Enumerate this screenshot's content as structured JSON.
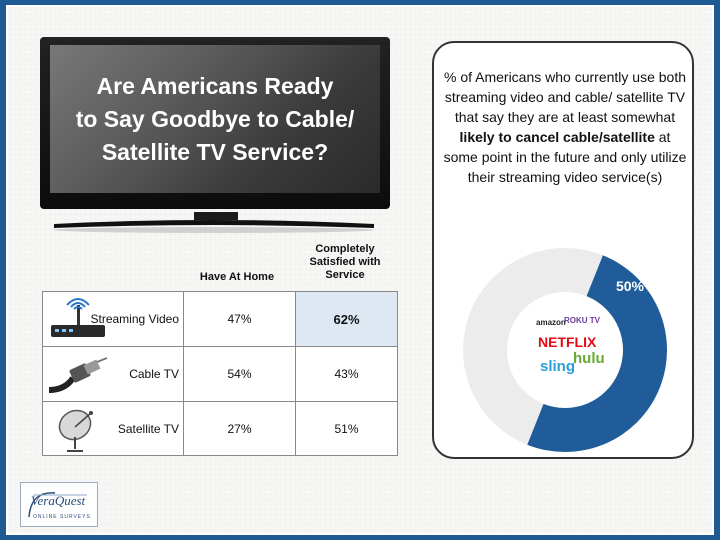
{
  "tv": {
    "title_line1": "Are Americans Ready",
    "title_line2": "to Say Goodbye to Cable/",
    "title_line3": "Satellite TV Service?"
  },
  "table": {
    "columns": [
      "Have At Home",
      [
        "Completely",
        "Satisfied with",
        "Service"
      ]
    ],
    "rows": [
      {
        "icon": "router-icon",
        "label": "Streaming Video",
        "have_at_home": "47%",
        "satisfied": "62%"
      },
      {
        "icon": "coax-cable-icon",
        "label": "Cable TV",
        "have_at_home": "54%",
        "satisfied": "43%"
      },
      {
        "icon": "satellite-dish-icon",
        "label": "Satellite TV",
        "have_at_home": "27%",
        "satisfied": "51%"
      }
    ]
  },
  "card": {
    "text_before": "% of Americans who currently use both streaming video and cable/ satellite TV that say they are at least somewhat ",
    "text_bold": "likely to cancel cable/satellite",
    "text_after": " at some point in the future and only utilize their streaming video service(s)"
  },
  "chart_data": {
    "type": "pie",
    "subtype": "donut",
    "slices": [
      {
        "label": "likely to cancel",
        "value": 50,
        "data_label": "50%",
        "color": "#1f5c99"
      },
      {
        "label": "",
        "value": 50,
        "color": "#ececec"
      }
    ],
    "brands": [
      "amazon",
      "ROKU TV",
      "NETFLIX",
      "sling",
      "hulu"
    ]
  },
  "logo": {
    "name": "VeraQuest",
    "tagline": "ONLINE SURVEYS"
  },
  "colors": {
    "border": "#1e5a94",
    "accent": "#1f5c99",
    "highlight_cell": "#dde8f3",
    "netflix": "#e50914",
    "hulu": "#66aa33",
    "sling": "#2b9fd9",
    "roku": "#6c3c97"
  }
}
